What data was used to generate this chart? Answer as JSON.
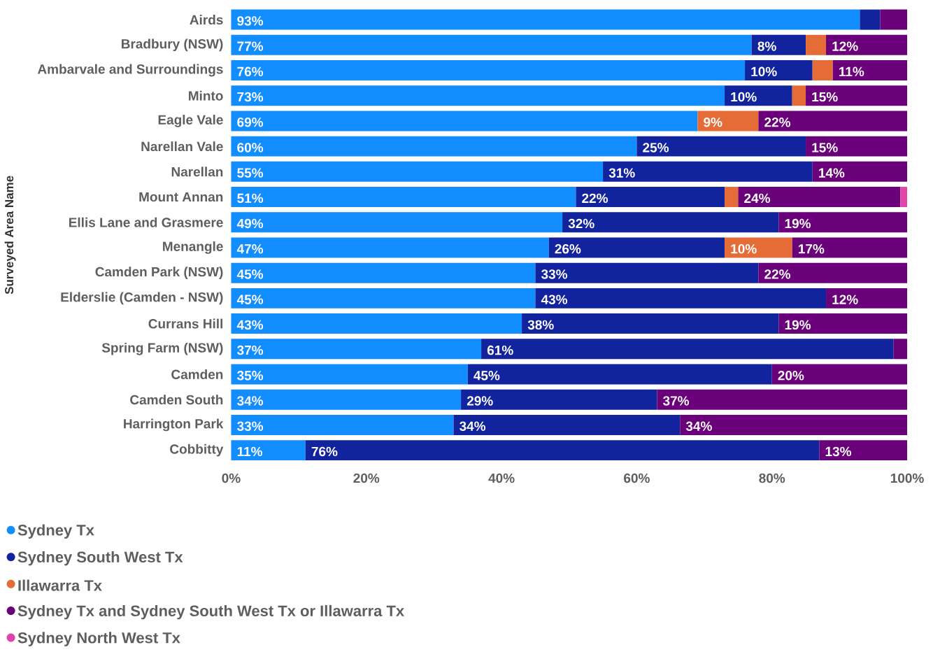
{
  "chart_data": {
    "type": "bar",
    "orientation": "horizontal",
    "stacked": true,
    "ylabel": "Surveyed Area Name",
    "categories": [
      "Airds",
      "Bradbury (NSW)",
      "Ambarvale and Surroundings",
      "Minto",
      "Eagle Vale",
      "Narellan Vale",
      "Narellan",
      "Mount Annan",
      "Ellis Lane and Grasmere",
      "Menangle",
      "Camden Park (NSW)",
      "Elderslie (Camden - NSW)",
      "Currans Hill",
      "Spring Farm (NSW)",
      "Camden",
      "Camden South",
      "Harrington Park",
      "Cobbitty"
    ],
    "series": [
      {
        "name": "Sydney Tx",
        "color": "#118dff",
        "values": [
          93,
          77,
          76,
          73,
          69,
          60,
          55,
          51,
          49,
          47,
          45,
          45,
          43,
          37,
          35,
          34,
          32.9,
          11
        ],
        "value_labels": [
          "93%",
          "77%",
          "76%",
          "73%",
          "69%",
          "60%",
          "55%",
          "51%",
          "49%",
          "47%",
          "45%",
          "45%",
          "43%",
          "37%",
          "35%",
          "34%",
          "33%",
          "11%"
        ]
      },
      {
        "name": "Sydney South West Tx",
        "color": "#12239e",
        "values": [
          3,
          8,
          10,
          10,
          null,
          25,
          31,
          22,
          32,
          26,
          33,
          43,
          38,
          61,
          45,
          29,
          33.5,
          76
        ],
        "value_labels": [
          null,
          "8%",
          "10%",
          "10%",
          null,
          "25%",
          "31%",
          "22%",
          "32%",
          "26%",
          "33%",
          "43%",
          "38%",
          "61%",
          "45%",
          "29%",
          "34%",
          "76%"
        ]
      },
      {
        "name": "Illawarra Tx",
        "color": "#e66c37",
        "values": [
          null,
          3,
          3,
          2,
          9,
          null,
          null,
          2,
          null,
          10,
          null,
          null,
          null,
          null,
          null,
          null,
          null,
          null
        ],
        "value_labels": [
          null,
          null,
          null,
          null,
          "9%",
          null,
          null,
          null,
          null,
          "10%",
          null,
          null,
          null,
          null,
          null,
          null,
          null,
          null
        ]
      },
      {
        "name": "Sydney Tx and Sydney South West Tx or Illawarra Tx",
        "color": "#6b007b",
        "values": [
          4,
          12,
          11,
          15,
          22,
          15,
          14,
          24,
          19,
          17,
          22,
          12,
          19,
          2,
          20,
          37,
          33.6,
          13
        ],
        "value_labels": [
          null,
          "12%",
          "11%",
          "15%",
          "22%",
          "15%",
          "14%",
          "24%",
          "19%",
          "17%",
          "22%",
          "12%",
          "19%",
          null,
          "20%",
          "37%",
          "34%",
          "13%"
        ]
      },
      {
        "name": "Sydney North West Tx",
        "color": "#e044a7",
        "values": [
          null,
          null,
          null,
          null,
          null,
          null,
          null,
          1,
          null,
          null,
          null,
          null,
          null,
          null,
          null,
          null,
          null,
          null
        ],
        "value_labels": [
          null,
          null,
          null,
          null,
          null,
          null,
          null,
          null,
          null,
          null,
          null,
          null,
          null,
          null,
          null,
          null,
          null,
          null
        ]
      }
    ],
    "xlim": [
      0,
      100
    ],
    "xticks": [
      {
        "value": 0,
        "label": "0%"
      },
      {
        "value": 20,
        "label": "20%"
      },
      {
        "value": 40,
        "label": "40%"
      },
      {
        "value": 60,
        "label": "60%"
      },
      {
        "value": 80,
        "label": "80%"
      },
      {
        "value": 100,
        "label": "100%"
      }
    ],
    "legend": "bottom left"
  }
}
